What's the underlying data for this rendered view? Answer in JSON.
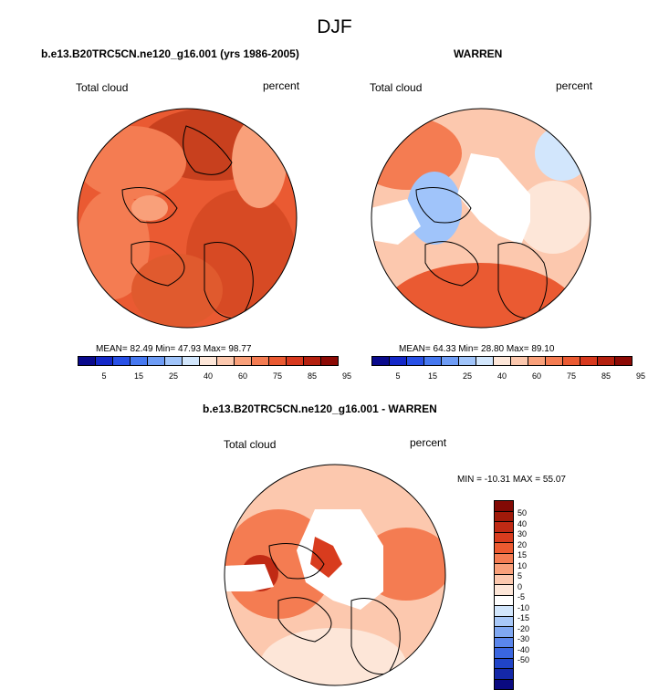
{
  "title": "DJF",
  "panel1": {
    "header": "b.e13.B20TRC5CN.ne120_g16.001 (yrs 1986-2005)",
    "left_label": "Total cloud",
    "right_label": "percent",
    "stats": "MEAN= 82.49  Min= 47.93  Max= 98.77"
  },
  "panel2": {
    "header": "WARREN",
    "left_label": "Total cloud",
    "right_label": "percent",
    "stats": "MEAN= 64.33  Min= 28.80  Max= 89.10"
  },
  "panel3": {
    "header": "b.e13.B20TRC5CN.ne120_g16.001 - WARREN",
    "left_label": "Total cloud",
    "right_label": "percent",
    "minmax": "MIN = -10.31 MAX =  55.07"
  },
  "colorbar_abs": {
    "colors": [
      "#0a0a8c",
      "#1428c8",
      "#2850e6",
      "#4678f0",
      "#6e9cf5",
      "#a0c4fa",
      "#d2e6fc",
      "#fde6d8",
      "#fcc8ae",
      "#f9a07a",
      "#f47c52",
      "#ea5a32",
      "#d7391e",
      "#b4200f",
      "#8c0a05"
    ],
    "ticks": [
      "5",
      "15",
      "25",
      "40",
      "60",
      "75",
      "85",
      "95"
    ]
  },
  "colorbar_diff": {
    "colors": [
      "#820a05",
      "#a01a0a",
      "#c02a14",
      "#d83c1e",
      "#ec5a30",
      "#f47c52",
      "#f9a07a",
      "#fcc8ae",
      "#fde6d8",
      "#ffffff",
      "#d2e6fc",
      "#a8c8f8",
      "#80a8f2",
      "#5a86ec",
      "#3a66e0",
      "#2044c8",
      "#1428a8",
      "#0a0a80"
    ],
    "ticks": [
      "50",
      "40",
      "30",
      "20",
      "15",
      "10",
      "5",
      "0",
      "-5",
      "-10",
      "-15",
      "-20",
      "-30",
      "-40",
      "-50"
    ]
  }
}
